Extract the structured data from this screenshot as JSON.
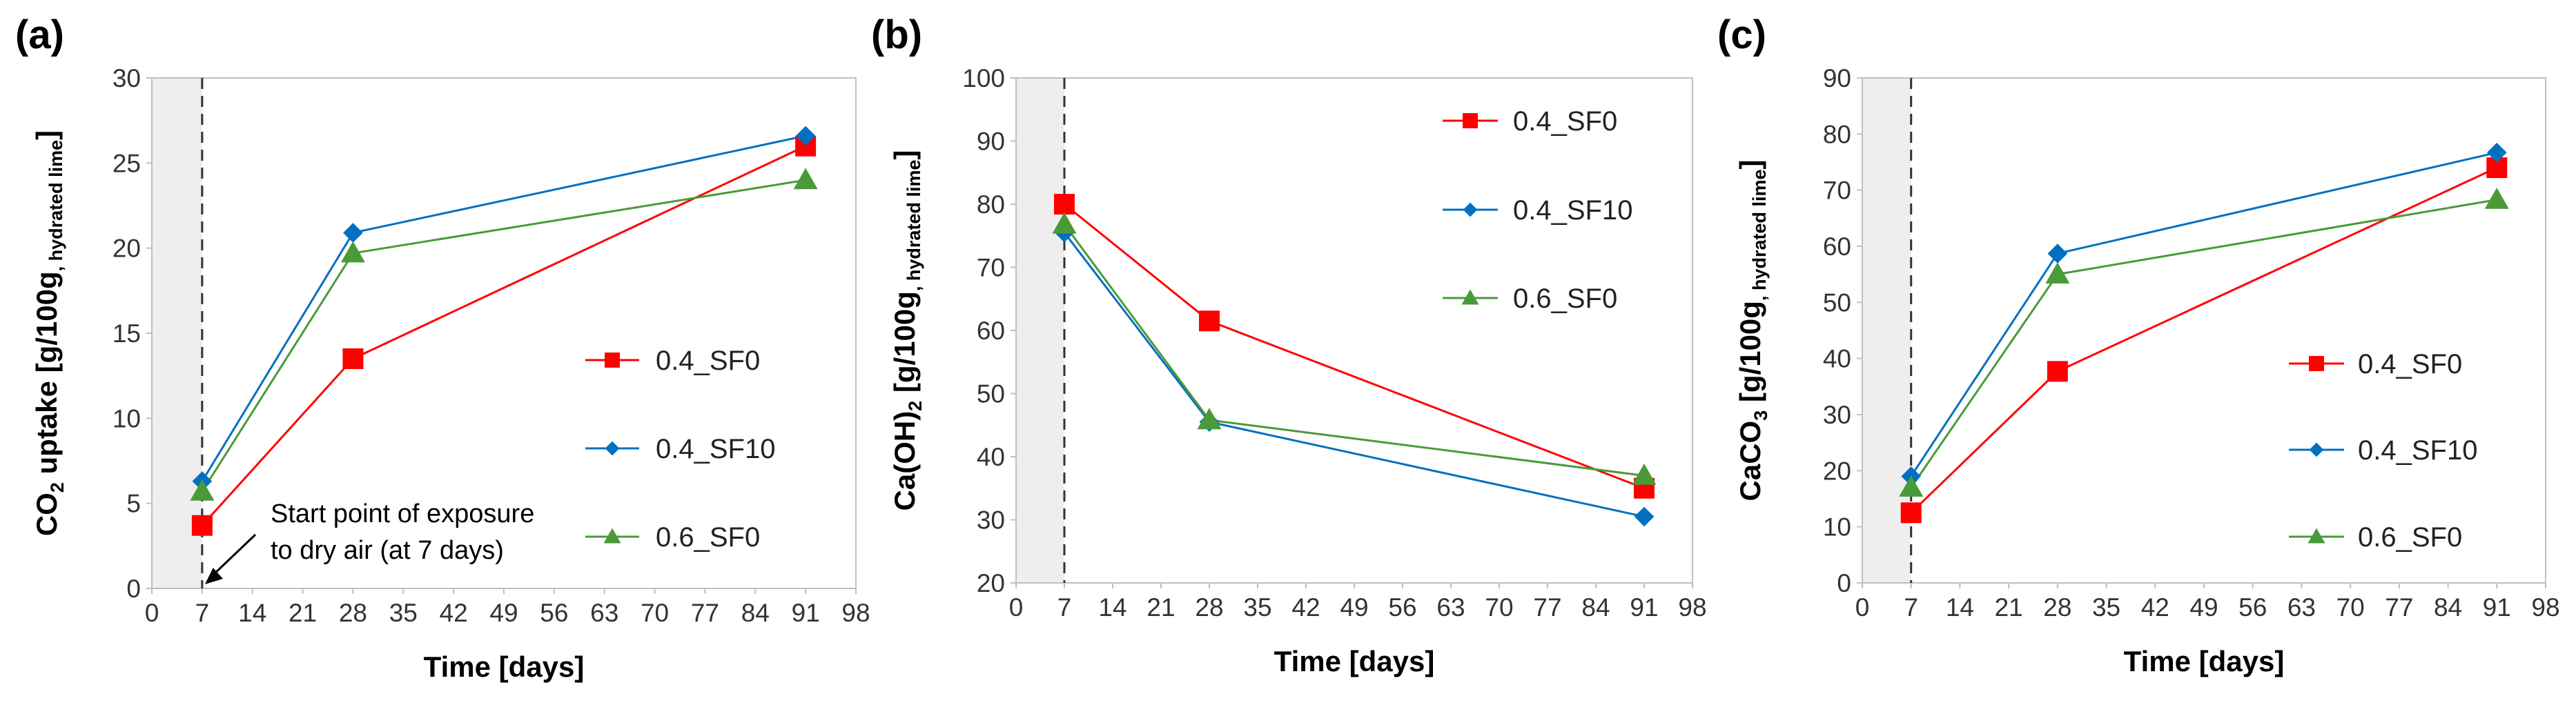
{
  "chart_data": [
    {
      "panel": "(a)",
      "type": "line",
      "xlabel": "Time [days]",
      "ylabel": "CO2 uptake [g/100g, hydrated lime]",
      "ylabel_parts": {
        "pre": "CO",
        "sub1": "2",
        "mid": " uptake [g/100g",
        "sub2": ", hydrated lime",
        "post": "]"
      },
      "xlim": [
        0,
        98
      ],
      "xticks": [
        0,
        7,
        14,
        21,
        28,
        35,
        42,
        49,
        56,
        63,
        70,
        77,
        84,
        91,
        98
      ],
      "ylim": [
        0,
        30
      ],
      "yticks": [
        0,
        5,
        10,
        15,
        20,
        25,
        30
      ],
      "shade_until": 7,
      "vline_at": 7,
      "legend_position": "center-right",
      "annotation": {
        "lines": [
          "Start point of exposure",
          "to dry air (at 7 days)"
        ]
      },
      "series": [
        {
          "name": "0.4_SF0",
          "color": "#ff0000",
          "marker": "square",
          "x": [
            7,
            28,
            91
          ],
          "y": [
            3.7,
            13.5,
            26.0
          ]
        },
        {
          "name": "0.4_SF10",
          "color": "#0070c0",
          "marker": "diamond",
          "x": [
            7,
            28,
            91
          ],
          "y": [
            6.3,
            20.9,
            26.6
          ]
        },
        {
          "name": "0.6_SF0",
          "color": "#4a9a3a",
          "marker": "triangle",
          "x": [
            7,
            28,
            91
          ],
          "y": [
            5.7,
            19.7,
            24.0
          ]
        }
      ]
    },
    {
      "panel": "(b)",
      "type": "line",
      "xlabel": "Time [days]",
      "ylabel": "Ca(OH)2 [g/100g, hydrated lime]",
      "ylabel_parts": {
        "pre": "Ca(OH)",
        "sub1": "2",
        "mid": " [g/100g",
        "sub2": ", hydrated lime",
        "post": "]"
      },
      "xlim": [
        0,
        98
      ],
      "xticks": [
        0,
        7,
        14,
        21,
        28,
        35,
        42,
        49,
        56,
        63,
        70,
        77,
        84,
        91,
        98
      ],
      "ylim": [
        20,
        100
      ],
      "yticks": [
        20,
        30,
        40,
        50,
        60,
        70,
        80,
        90,
        100
      ],
      "shade_until": 7,
      "vline_at": 7,
      "legend_position": "top-right",
      "series": [
        {
          "name": "0.4_SF0",
          "color": "#ff0000",
          "marker": "square",
          "x": [
            7,
            28,
            91
          ],
          "y": [
            80.0,
            61.5,
            35.0
          ]
        },
        {
          "name": "0.4_SF10",
          "color": "#0070c0",
          "marker": "diamond",
          "x": [
            7,
            28,
            91
          ],
          "y": [
            75.5,
            45.5,
            30.5
          ]
        },
        {
          "name": "0.6_SF0",
          "color": "#4a9a3a",
          "marker": "triangle",
          "x": [
            7,
            28,
            91
          ],
          "y": [
            76.8,
            45.8,
            37.0
          ]
        }
      ]
    },
    {
      "panel": "(c)",
      "type": "line",
      "xlabel": "Time [days]",
      "ylabel": "CaCO3 [g/100g, hydrated lime]",
      "ylabel_parts": {
        "pre": "CaCO",
        "sub1": "3",
        "mid": " [g/100g",
        "sub2": ", hydrated lime",
        "post": "]"
      },
      "xlim": [
        0,
        98
      ],
      "xticks": [
        0,
        7,
        14,
        21,
        28,
        35,
        42,
        49,
        56,
        63,
        70,
        77,
        84,
        91,
        98
      ],
      "ylim": [
        0,
        90
      ],
      "yticks": [
        0,
        10,
        20,
        30,
        40,
        50,
        60,
        70,
        80,
        90
      ],
      "shade_until": 7,
      "vline_at": 7,
      "legend_position": "center-right",
      "series": [
        {
          "name": "0.4_SF0",
          "color": "#ff0000",
          "marker": "square",
          "x": [
            7,
            28,
            91
          ],
          "y": [
            12.5,
            37.7,
            74.0
          ]
        },
        {
          "name": "0.4_SF10",
          "color": "#0070c0",
          "marker": "diamond",
          "x": [
            7,
            28,
            91
          ],
          "y": [
            19.0,
            58.7,
            76.7
          ]
        },
        {
          "name": "0.6_SF0",
          "color": "#4a9a3a",
          "marker": "triangle",
          "x": [
            7,
            28,
            91
          ],
          "y": [
            17.0,
            55.0,
            68.3
          ]
        }
      ]
    }
  ]
}
